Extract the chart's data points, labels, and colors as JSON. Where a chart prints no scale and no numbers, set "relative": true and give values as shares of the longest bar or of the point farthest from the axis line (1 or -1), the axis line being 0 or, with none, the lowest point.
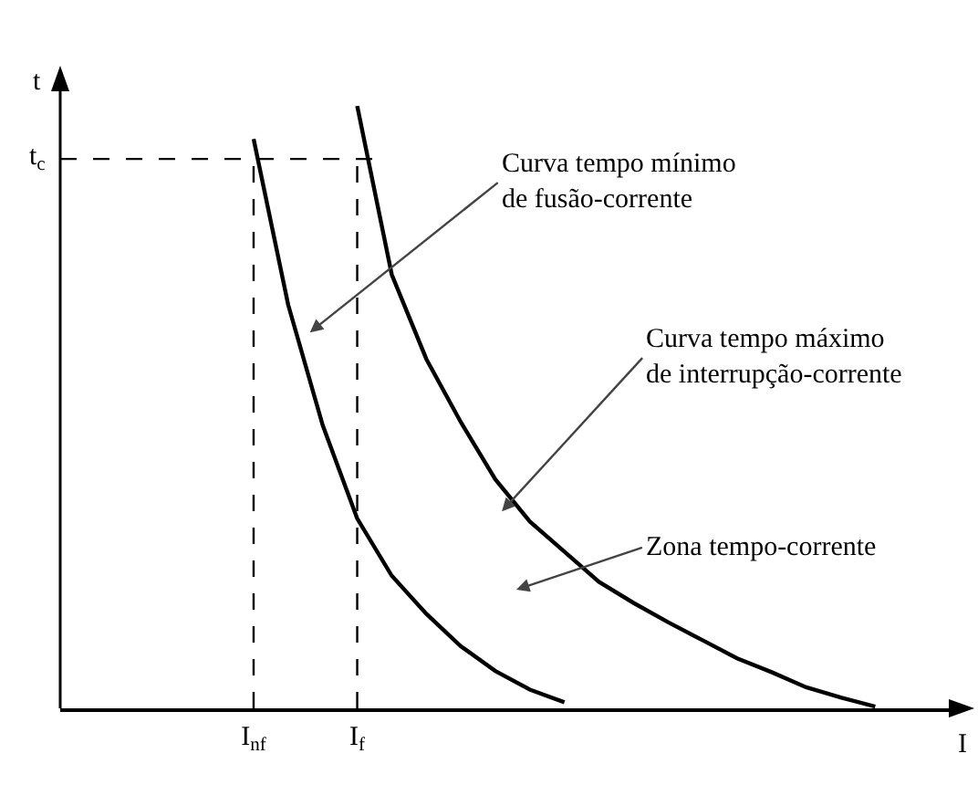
{
  "chart_data": {
    "type": "line",
    "relative": true,
    "xlabel": "I",
    "ylabel": "t",
    "line_style": "solid",
    "marker": "none",
    "grid": false,
    "tick_labels": "x",
    "categories": [
      null,
      null,
      null,
      null,
      null,
      "I$_{nf}$",
      null,
      null,
      "I$_{f}$",
      null,
      null,
      null,
      null,
      null,
      null,
      null,
      null,
      null,
      null,
      null,
      null,
      null,
      null,
      null,
      null
    ],
    "series": [
      {
        "color": "#000000",
        "values": [
          null,
          null,
          null,
          null,
          null,
          0.945,
          0.67,
          0.47,
          0.315,
          0.22,
          0.157,
          0.103,
          0.062,
          0.031,
          0.01,
          null,
          null,
          null,
          null,
          null,
          null,
          null,
          null,
          null,
          null
        ]
      },
      {
        "color": "#000000",
        "values": [
          null,
          null,
          null,
          null,
          null,
          null,
          null,
          null,
          1,
          0.72,
          0.58,
          0.475,
          0.38,
          0.31,
          0.26,
          0.21,
          0.175,
          0.143,
          0.113,
          0.083,
          0.06,
          0.035,
          0.018,
          0.003,
          null
        ]
      }
    ],
    "ref_lines": [
      {
        "axis": "x",
        "value": "I$_{nf}$",
        "line_style": "dashed",
        "color": "#000000"
      },
      {
        "axis": "x",
        "value": "I$_{f}$",
        "line_style": "dashed",
        "color": "#000000"
      },
      {
        "axis": "y",
        "value": 0.912,
        "label": "t$_{c}$",
        "line_style": "dashed",
        "color": "#000000"
      }
    ],
    "annotations": [
      "Curva tempo mínimo\nde fusão-corrente",
      "Curva tempo máximo\nde interrupção-corrente",
      "Zona tempo-corrente"
    ]
  }
}
